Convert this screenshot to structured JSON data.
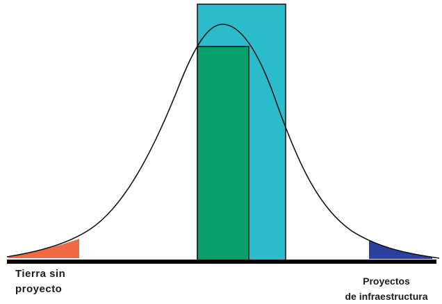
{
  "colors": {
    "outer_bar": "#2bbccc",
    "inner_bar": "#08a06c",
    "left_tail": "#ef6a44",
    "right_tail": "#2a3fa0",
    "curve": "#111111",
    "baseline": "#000000"
  },
  "labels": {
    "left_line1": "Tierra sin",
    "left_line2": "proyecto",
    "right_line1": "Proyectos",
    "right_line2": "de infraestructura"
  }
}
